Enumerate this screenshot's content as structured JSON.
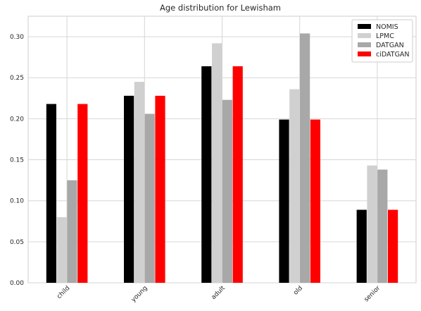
{
  "chart_data": {
    "type": "bar",
    "title": "Age distribution for Lewisham",
    "xlabel": "",
    "ylabel": "",
    "categories": [
      "child",
      "young",
      "adult",
      "old",
      "senior"
    ],
    "series": [
      {
        "name": "NOMIS",
        "color": "#000000",
        "values": [
          0.218,
          0.228,
          0.264,
          0.199,
          0.089
        ]
      },
      {
        "name": "LPMC",
        "color": "#d0d0d0",
        "values": [
          0.08,
          0.245,
          0.292,
          0.236,
          0.143
        ]
      },
      {
        "name": "DATGAN",
        "color": "#a8a8a8",
        "values": [
          0.125,
          0.206,
          0.223,
          0.304,
          0.138
        ]
      },
      {
        "name": "ciDATGAN",
        "color": "#ff0000",
        "values": [
          0.218,
          0.228,
          0.264,
          0.199,
          0.089
        ]
      }
    ],
    "ylim": [
      0,
      0.325
    ],
    "yticks": [
      "0.00",
      "0.05",
      "0.10",
      "0.15",
      "0.20",
      "0.25",
      "0.30"
    ],
    "grid": true,
    "legend_position": "top-right"
  }
}
